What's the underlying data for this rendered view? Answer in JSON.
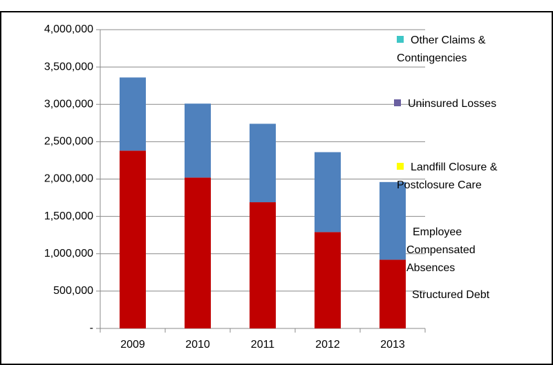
{
  "chart_data": {
    "type": "bar",
    "stacked": true,
    "categories": [
      "2009",
      "2010",
      "2011",
      "2012",
      "2013"
    ],
    "series": [
      {
        "name": "Structured Debt",
        "color": "#c00000",
        "values": [
          2380000,
          2020000,
          1690000,
          1290000,
          920000
        ]
      },
      {
        "name": "Employee Compensated Absences",
        "color": "#4f81bd",
        "values": [
          980000,
          990000,
          1050000,
          1070000,
          1040000
        ]
      },
      {
        "name": "Landfill Closure & Postclosure Care",
        "color": "#ffff00",
        "values": [
          0,
          0,
          0,
          0,
          0
        ]
      },
      {
        "name": "Uninsured Losses",
        "color": "#6a5fa0",
        "values": [
          0,
          0,
          0,
          0,
          0
        ]
      },
      {
        "name": "Other Claims & Contingencies",
        "color": "#3ec6c6",
        "values": [
          0,
          0,
          0,
          0,
          0
        ]
      }
    ],
    "ylim": [
      0,
      4000000
    ],
    "yticks": [
      {
        "value": 0,
        "label": "-"
      },
      {
        "value": 500000,
        "label": "500,000"
      },
      {
        "value": 1000000,
        "label": "1,000,000"
      },
      {
        "value": 1500000,
        "label": "1,500,000"
      },
      {
        "value": 2000000,
        "label": "2,000,000"
      },
      {
        "value": 2500000,
        "label": "2,500,000"
      },
      {
        "value": 3000000,
        "label": "3,000,000"
      },
      {
        "value": 3500000,
        "label": "3,500,000"
      },
      {
        "value": 4000000,
        "label": "4,000,000"
      }
    ],
    "grid": true
  }
}
